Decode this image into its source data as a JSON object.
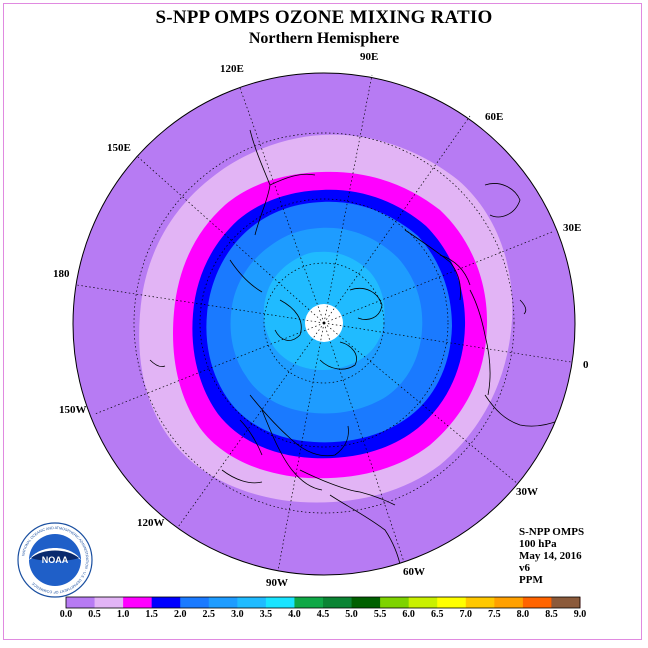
{
  "header": {
    "title": "S-NPP OMPS OZONE MIXING RATIO",
    "subtitle": "Northern Hemisphere"
  },
  "longitude_labels": [
    {
      "id": "90E",
      "text": "90E"
    },
    {
      "id": "60E",
      "text": "60E"
    },
    {
      "id": "30E",
      "text": "30E"
    },
    {
      "id": "0",
      "text": "0"
    },
    {
      "id": "30W",
      "text": "30W"
    },
    {
      "id": "60W",
      "text": "60W"
    },
    {
      "id": "90W",
      "text": "90W"
    },
    {
      "id": "120W",
      "text": "120W"
    },
    {
      "id": "150W",
      "text": "150W"
    },
    {
      "id": "180",
      "text": "180"
    },
    {
      "id": "150E",
      "text": "150E"
    },
    {
      "id": "120E",
      "text": "120E"
    }
  ],
  "info": {
    "instrument": "S-NPP OMPS",
    "level": "100 hPa",
    "date": "May 14, 2016",
    "version": "v6",
    "units": "PPM"
  },
  "logo": {
    "text": "NOAA",
    "ring_text": "NATIONAL OCEANIC AND ATMOSPHERIC ADMINISTRATION · U.S. DEPARTMENT OF COMMERCE"
  },
  "colorbar": {
    "labels": [
      "0.0",
      "0.5",
      "1.0",
      "1.5",
      "2.0",
      "2.5",
      "3.0",
      "3.5",
      "4.0",
      "4.5",
      "5.0",
      "5.5",
      "6.0",
      "6.5",
      "7.0",
      "7.5",
      "8.0",
      "8.5",
      "9.0"
    ],
    "colors": [
      "#b77bf3",
      "#e2b4f5",
      "#ff00ff",
      "#0000ff",
      "#1a7aff",
      "#1e9cff",
      "#20bbff",
      "#19e4ff",
      "#0fa846",
      "#0a8433",
      "#006000",
      "#7ed300",
      "#c9f000",
      "#ffff00",
      "#ffc800",
      "#ffa000",
      "#ff6400",
      "#ff0000",
      "#8b5a3a"
    ]
  },
  "map": {
    "field_colors": {
      "outer": "#b77bf3",
      "band_0_5": "#e2b4f5",
      "band_1_0": "#ff00ff",
      "band_1_5": "#0000ff",
      "band_2_0": "#1a7aff",
      "band_2_5": "#1e9cff",
      "band_3_0": "#20bbff",
      "no_data": "#ffffff"
    }
  }
}
